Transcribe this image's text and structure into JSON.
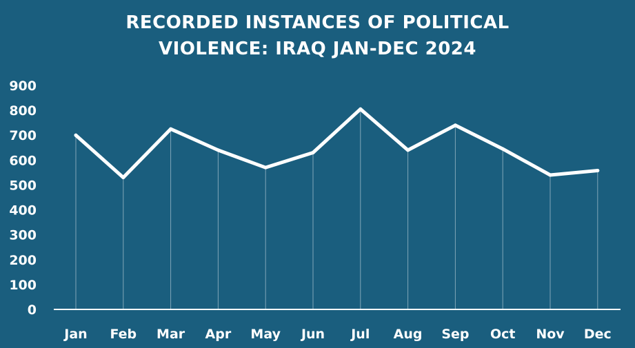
{
  "chart_data": {
    "type": "line",
    "title_lines": [
      "RECORDED INSTANCES OF POLITICAL",
      "VIOLENCE: IRAQ JAN-DEC 2024"
    ],
    "categories": [
      "Jan",
      "Feb",
      "Mar",
      "Apr",
      "May",
      "Jun",
      "Jul",
      "Aug",
      "Sep",
      "Oct",
      "Nov",
      "Dec"
    ],
    "values": [
      700,
      530,
      725,
      640,
      570,
      630,
      805,
      640,
      740,
      645,
      540,
      558
    ],
    "ylim": [
      0,
      900
    ],
    "yticks": [
      "0",
      "100",
      "200",
      "300",
      "400",
      "500",
      "600",
      "700",
      "800",
      "900"
    ],
    "grid": false,
    "drop_lines": true,
    "colors": {
      "background": "#1a5e7e",
      "line": "#ffffff",
      "text": "#ffffff"
    }
  }
}
